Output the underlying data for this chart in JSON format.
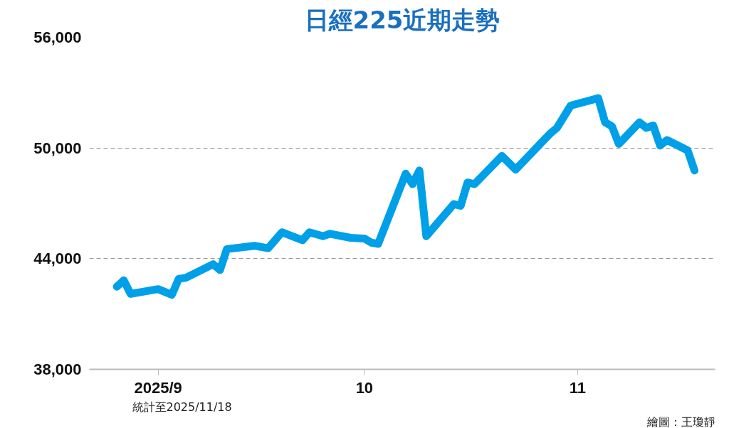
{
  "chart_data": {
    "type": "line",
    "title": "日經225近期走勢",
    "x": [
      "2025-08-26",
      "2025-08-27",
      "2025-08-28",
      "2025-09-01",
      "2025-09-03",
      "2025-09-04",
      "2025-09-05",
      "2025-09-09",
      "2025-09-10",
      "2025-09-11",
      "2025-09-15",
      "2025-09-17",
      "2025-09-19",
      "2025-09-22",
      "2025-09-23",
      "2025-09-25",
      "2025-09-26",
      "2025-09-29",
      "2025-10-01",
      "2025-10-02",
      "2025-10-03",
      "2025-10-07",
      "2025-10-08",
      "2025-10-09",
      "2025-10-10",
      "2025-10-14",
      "2025-10-15",
      "2025-10-16",
      "2025-10-17",
      "2025-10-21",
      "2025-10-23",
      "2025-10-28",
      "2025-10-29",
      "2025-10-31",
      "2025-11-04",
      "2025-11-05",
      "2025-11-06",
      "2025-11-07",
      "2025-11-10",
      "2025-11-11",
      "2025-11-12",
      "2025-11-13",
      "2025-11-14",
      "2025-11-17",
      "2025-11-18"
    ],
    "series": [
      {
        "color": "#00a0e9",
        "values": [
          42480,
          42830,
          42090,
          42350,
          42040,
          42910,
          42960,
          43700,
          43390,
          44520,
          44700,
          44570,
          45430,
          45000,
          45430,
          45220,
          45350,
          45130,
          45090,
          44870,
          44800,
          48610,
          48040,
          48780,
          45220,
          46960,
          46870,
          48130,
          48040,
          49570,
          48830,
          50780,
          51090,
          52300,
          52700,
          51390,
          51170,
          50220,
          51390,
          51090,
          51220,
          50130,
          50430,
          49870,
          48780
        ]
      }
    ],
    "xlim": [
      "2025-08-22",
      "2025-11-21"
    ],
    "xticks": [
      {
        "value": "2025-09-01",
        "label": "2025/9"
      },
      {
        "value": "2025-10-01",
        "label": "10"
      },
      {
        "value": "2025-11-01",
        "label": "11"
      }
    ],
    "ylim": [
      38000,
      56000
    ],
    "yticks": [
      {
        "value": 38000,
        "label": "38,000"
      },
      {
        "value": 44000,
        "label": "44,000"
      },
      {
        "value": 50000,
        "label": "50,000"
      },
      {
        "value": 56000,
        "label": "56,000"
      }
    ],
    "grid": "y",
    "line_style": "solid",
    "marker": "none",
    "annotations": [
      "統計至2025/11/18",
      "繪圖：王瓊靜"
    ]
  }
}
